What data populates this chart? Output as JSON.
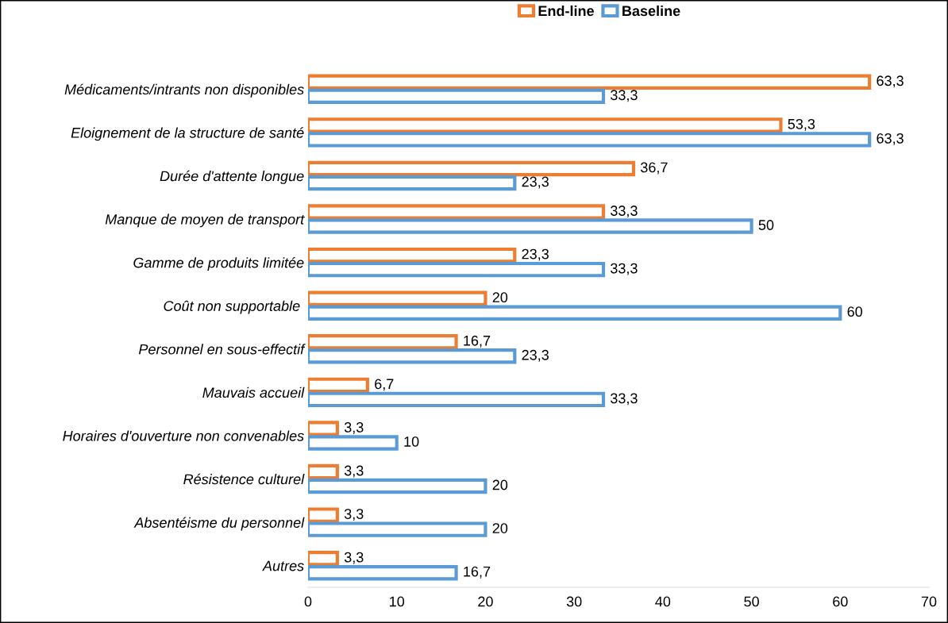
{
  "chart_data": {
    "type": "bar",
    "orientation": "horizontal",
    "legend": "top",
    "grid": false,
    "categories": [
      "Médicaments/intrants non disponibles",
      "Eloignement de la structure de santé",
      "Durée d'attente longue",
      "Manque de moyen de transport",
      "Gamme de produits limitée",
      "Coût non supportable ",
      "Personnel en sous-effectif",
      "Mauvais accueil",
      "Horaires d'ouverture non convenables",
      "Résistence culturel",
      "Absentéisme du personnel",
      "Autres"
    ],
    "series": [
      {
        "name": "End-line",
        "color": "#ed7d31",
        "values": [
          63.3,
          53.3,
          36.7,
          33.3,
          23.3,
          20,
          16.7,
          6.7,
          3.3,
          3.3,
          3.3,
          3.3
        ],
        "value_labels": [
          "63,3",
          "53,3",
          "36,7",
          "33,3",
          "23,3",
          "20",
          "16,7",
          "6,7",
          "3,3",
          "3,3",
          "3,3",
          "3,3"
        ]
      },
      {
        "name": "Baseline",
        "color": "#5b9bd5",
        "values": [
          33.3,
          63.3,
          23.3,
          50,
          33.3,
          60,
          23.3,
          33.3,
          10,
          20,
          20,
          16.7
        ],
        "value_labels": [
          "33,3",
          "63,3",
          "23,3",
          "50",
          "33,3",
          "60",
          "23,3",
          "33,3",
          "10",
          "20",
          "20",
          "16,7"
        ]
      }
    ],
    "xlim": [
      0,
      70
    ],
    "xticks": [
      0,
      10,
      20,
      30,
      40,
      50,
      60,
      70
    ]
  }
}
